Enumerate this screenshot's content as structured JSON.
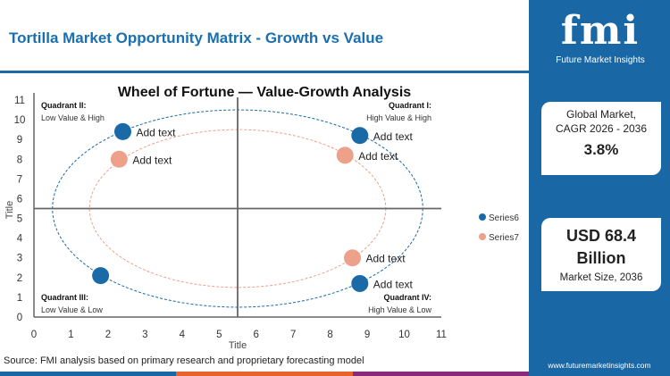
{
  "header": {
    "title": "Tortilla Market Opportunity Matrix - Growth vs Value"
  },
  "sidebar": {
    "logo_text": "fmi",
    "logo_sub": "Future Market Insights",
    "cagr_label_1": "Global Market,",
    "cagr_label_2": "CAGR 2026 - 2036",
    "cagr_value": "3.8%",
    "size_value_1": "USD 68.4",
    "size_value_2": "Billion",
    "size_label": "Market Size, 2036",
    "url": "www.futuremarketinsights.com"
  },
  "footer": {
    "source": "Source: FMI analysis based on primary research and proprietary forecasting model"
  },
  "colors": {
    "brand": "#1a67a6",
    "series6": "#1a6aa8",
    "series7": "#eda08a"
  },
  "chart_data": {
    "type": "scatter",
    "title": "Wheel of Fortune — Value-Growth  Analysis",
    "xlabel": "Title",
    "ylabel": "Title",
    "xlim": [
      0,
      11
    ],
    "ylim": [
      0,
      11
    ],
    "xticks": [
      "0",
      "1",
      "2",
      "3",
      "4",
      "5",
      "6",
      "7",
      "8",
      "9",
      "10",
      "11"
    ],
    "yticks": [
      "0",
      "1",
      "2",
      "3",
      "4",
      "5",
      "6",
      "7",
      "8",
      "9",
      "10",
      "11"
    ],
    "grid": false,
    "legend": "right",
    "dividers": {
      "x": 5.5,
      "y": 5.5
    },
    "ellipses": [
      {
        "series": "Series6",
        "cx": 5.5,
        "cy": 5.5,
        "rx": 5,
        "ry": 5
      },
      {
        "series": "Series7",
        "cx": 5.5,
        "cy": 5.5,
        "rx": 4,
        "ry": 4
      }
    ],
    "quadrants": [
      {
        "name": "Quadrant I:",
        "desc": "High Value & High",
        "pos": "top-right"
      },
      {
        "name": "Quadrant II:",
        "desc": "Low Value & High",
        "pos": "top-left"
      },
      {
        "name": "Quadrant III:",
        "desc": "Low Value & Low",
        "pos": "bottom-left"
      },
      {
        "name": "Quadrant IV:",
        "desc": "High Value & Low",
        "pos": "bottom-right"
      }
    ],
    "series": [
      {
        "name": "Series6",
        "points": [
          {
            "x": 2.4,
            "y": 9.4,
            "label": "Add text"
          },
          {
            "x": 8.8,
            "y": 9.2,
            "label": "Add text"
          },
          {
            "x": 1.8,
            "y": 2.1,
            "label": ""
          },
          {
            "x": 8.8,
            "y": 1.7,
            "label": "Add text"
          }
        ]
      },
      {
        "name": "Series7",
        "points": [
          {
            "x": 2.3,
            "y": 8.0,
            "label": "Add text"
          },
          {
            "x": 8.4,
            "y": 8.2,
            "label": "Add text"
          },
          {
            "x": 8.6,
            "y": 3.0,
            "label": "Add text"
          }
        ]
      }
    ]
  }
}
